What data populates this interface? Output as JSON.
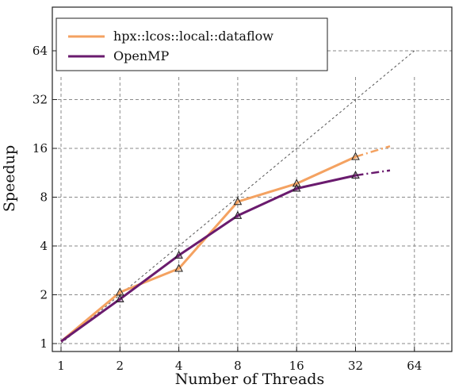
{
  "chart_data": {
    "type": "line",
    "title": "",
    "xlabel": "Number of Threads",
    "ylabel": "Speedup",
    "xscale": "log2",
    "yscale": "log2",
    "x_ticks": [
      1,
      2,
      4,
      8,
      16,
      32,
      64
    ],
    "y_ticks": [
      1,
      2,
      4,
      8,
      16,
      32,
      64
    ],
    "x_tick_labels": [
      "1",
      "2",
      "4",
      "8",
      "16",
      "32",
      "64"
    ],
    "y_tick_labels": [
      "1",
      "2",
      "4",
      "8",
      "16",
      "32",
      "64"
    ],
    "xlim": [
      0.8,
      128
    ],
    "ylim": [
      0.93,
      128
    ],
    "grid": true,
    "legend_position": "top-left",
    "ideal_line": {
      "x": [
        1,
        64
      ],
      "y": [
        1,
        64
      ],
      "style": "dashed"
    },
    "series": [
      {
        "name": "hpx::lcos::local::dataflow",
        "color": "#f4a261",
        "x": [
          1,
          2,
          4,
          8,
          16,
          32
        ],
        "y": [
          1.03,
          2.07,
          2.9,
          7.5,
          9.7,
          14.2
        ],
        "extrapolation": {
          "x": [
            32,
            48
          ],
          "y": [
            14.2,
            16.5
          ]
        }
      },
      {
        "name": "OpenMP",
        "color": "#6a1b6e",
        "x": [
          1,
          2,
          4,
          8,
          16,
          32
        ],
        "y": [
          1.03,
          1.88,
          3.5,
          6.15,
          9.05,
          10.9
        ],
        "extrapolation": {
          "x": [
            32,
            48
          ],
          "y": [
            10.9,
            11.7
          ]
        }
      }
    ]
  }
}
